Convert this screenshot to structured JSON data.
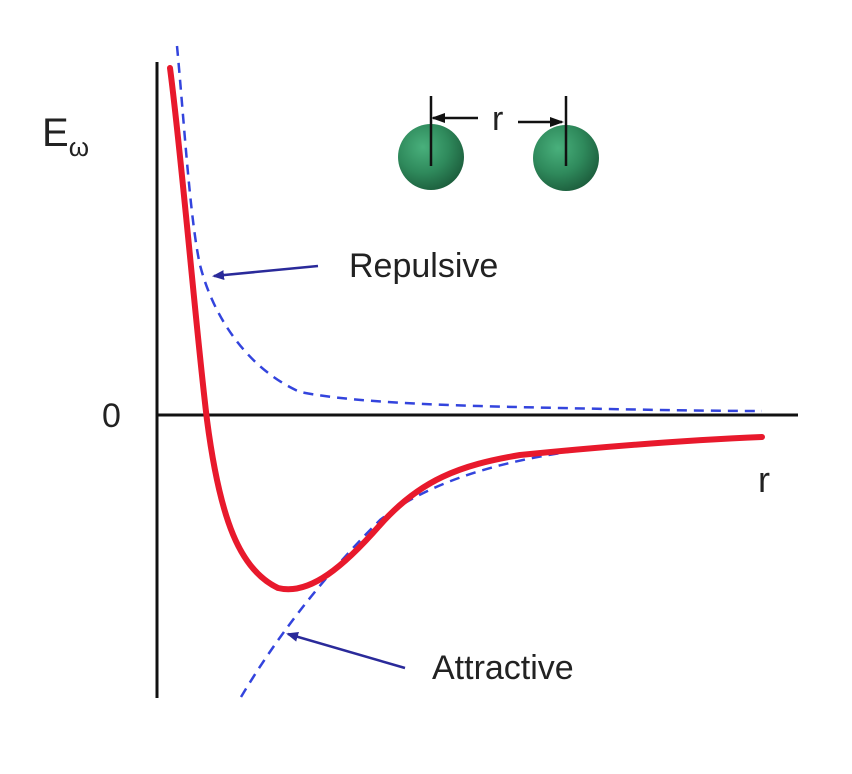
{
  "diagram": {
    "y_axis_label": "E",
    "y_axis_label_subscript": "ω",
    "zero_label": "0",
    "x_axis_label": "r",
    "separation_label": "r",
    "annotations": {
      "repulsive": "Repulsive",
      "attractive": "Attractive"
    },
    "colors": {
      "axes": "#111111",
      "total_curve": "#e8192c",
      "component_curves": "#3344dd",
      "arrows": "#2a2a9a",
      "atoms": "#2f8a5c",
      "background": "#ffffff"
    },
    "icons": [
      "atom-sphere",
      "atom-sphere"
    ]
  }
}
